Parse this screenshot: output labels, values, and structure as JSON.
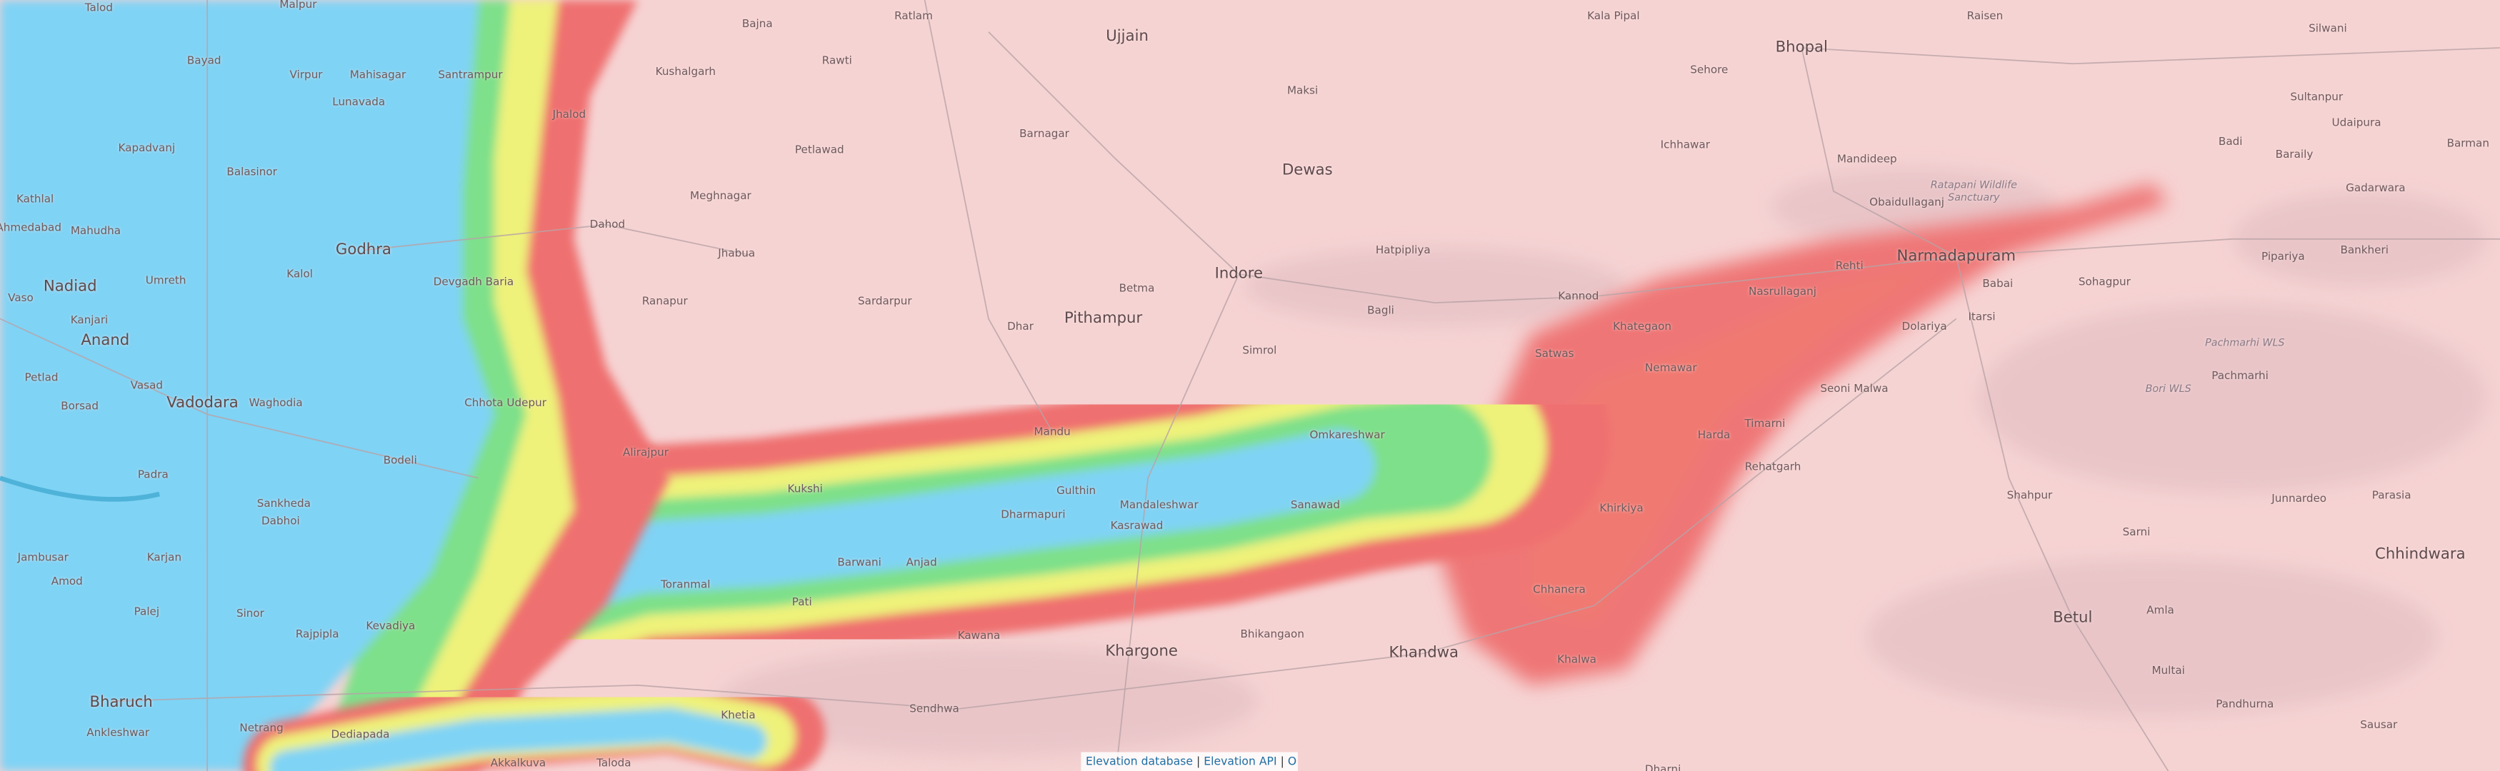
{
  "map": {
    "colors": {
      "background": "#f6d3d3",
      "low": "#7fd3f5",
      "green": "#7ee08a",
      "yellow": "#eef27a",
      "red": "#ef6f6f",
      "hills": "#e6c2c6"
    },
    "labels": [
      {
        "name": "Talod",
        "kind": "town"
      },
      {
        "name": "Malpur",
        "kind": "town"
      },
      {
        "name": "Ratlam",
        "kind": "town"
      },
      {
        "name": "Kala Pipal",
        "kind": "town"
      },
      {
        "name": "Raisen",
        "kind": "town"
      },
      {
        "name": "Silwani",
        "kind": "town"
      },
      {
        "name": "Bajna",
        "kind": "town"
      },
      {
        "name": "Bayad",
        "kind": "town"
      },
      {
        "name": "Virpur",
        "kind": "town"
      },
      {
        "name": "Mahisagar",
        "kind": "town"
      },
      {
        "name": "Santrampur",
        "kind": "town"
      },
      {
        "name": "Kushalgarh",
        "kind": "town"
      },
      {
        "name": "Rawti",
        "kind": "town"
      },
      {
        "name": "Ujjain",
        "kind": "city"
      },
      {
        "name": "Maksi",
        "kind": "town"
      },
      {
        "name": "Sehore",
        "kind": "town"
      },
      {
        "name": "Bhopal",
        "kind": "city"
      },
      {
        "name": "Sultanpur",
        "kind": "town"
      },
      {
        "name": "Lunavada",
        "kind": "town"
      },
      {
        "name": "Jhalod",
        "kind": "town"
      },
      {
        "name": "Petlawad",
        "kind": "town"
      },
      {
        "name": "Barnagar",
        "kind": "town"
      },
      {
        "name": "Dewas",
        "kind": "city"
      },
      {
        "name": "Ichhawar",
        "kind": "town"
      },
      {
        "name": "Mandideep",
        "kind": "town"
      },
      {
        "name": "Udaipura",
        "kind": "town"
      },
      {
        "name": "Kapadvanj",
        "kind": "town"
      },
      {
        "name": "Balasinor",
        "kind": "town"
      },
      {
        "name": "Meghnagar",
        "kind": "town"
      },
      {
        "name": "Obaidullaganj",
        "kind": "town"
      },
      {
        "name": "Ratapani Wildlife Sanctuary",
        "kind": "park"
      },
      {
        "name": "Badi",
        "kind": "town"
      },
      {
        "name": "Baraily",
        "kind": "town"
      },
      {
        "name": "Barman",
        "kind": "town"
      },
      {
        "name": "Gadarwara",
        "kind": "town"
      },
      {
        "name": "Kathlal",
        "kind": "town"
      },
      {
        "name": "Mahudha",
        "kind": "town"
      },
      {
        "name": "Godhra",
        "kind": "city"
      },
      {
        "name": "Dahod",
        "kind": "town"
      },
      {
        "name": "Jhabua",
        "kind": "town"
      },
      {
        "name": "Hatpipliya",
        "kind": "town"
      },
      {
        "name": "Rehti",
        "kind": "town"
      },
      {
        "name": "Narmadapuram",
        "kind": "city"
      },
      {
        "name": "Pipariya",
        "kind": "town"
      },
      {
        "name": "Bankheri",
        "kind": "town"
      },
      {
        "name": "Ahmedabad",
        "kind": "town"
      },
      {
        "name": "Nadiad",
        "kind": "city"
      },
      {
        "name": "Umreth",
        "kind": "town"
      },
      {
        "name": "Kalol",
        "kind": "town"
      },
      {
        "name": "Devgadh Baria",
        "kind": "town"
      },
      {
        "name": "Ranapur",
        "kind": "town"
      },
      {
        "name": "Sardarpur",
        "kind": "town"
      },
      {
        "name": "Betma",
        "kind": "town"
      },
      {
        "name": "Indore",
        "kind": "city"
      },
      {
        "name": "Pithampur",
        "kind": "city"
      },
      {
        "name": "Kannod",
        "kind": "town"
      },
      {
        "name": "Nasrullaganj",
        "kind": "town"
      },
      {
        "name": "Babai",
        "kind": "town"
      },
      {
        "name": "Sohagpur",
        "kind": "town"
      },
      {
        "name": "Vaso",
        "kind": "town"
      },
      {
        "name": "Anand",
        "kind": "city"
      },
      {
        "name": "Kanjari",
        "kind": "town"
      },
      {
        "name": "Dhar",
        "kind": "town"
      },
      {
        "name": "Simrol",
        "kind": "town"
      },
      {
        "name": "Bagli",
        "kind": "town"
      },
      {
        "name": "Satwas",
        "kind": "town"
      },
      {
        "name": "Khategaon",
        "kind": "town"
      },
      {
        "name": "Dolariya",
        "kind": "town"
      },
      {
        "name": "Itarsi",
        "kind": "town"
      },
      {
        "name": "Pachmarhi WLS",
        "kind": "park"
      },
      {
        "name": "Nemawar",
        "kind": "town"
      },
      {
        "name": "Seoni Malwa",
        "kind": "town"
      },
      {
        "name": "Petlad",
        "kind": "town"
      },
      {
        "name": "Vasad",
        "kind": "town"
      },
      {
        "name": "Pachmarhi",
        "kind": "town"
      },
      {
        "name": "Bori WLS",
        "kind": "park"
      },
      {
        "name": "Borsad",
        "kind": "town"
      },
      {
        "name": "Vadodara",
        "kind": "city"
      },
      {
        "name": "Waghodia",
        "kind": "town"
      },
      {
        "name": "Chhota Udepur",
        "kind": "town"
      },
      {
        "name": "Mandu",
        "kind": "town"
      },
      {
        "name": "Harda",
        "kind": "town"
      },
      {
        "name": "Timarni",
        "kind": "town"
      },
      {
        "name": "Alirajpur",
        "kind": "town"
      },
      {
        "name": "Omkareshwar",
        "kind": "town"
      },
      {
        "name": "Rehatgarh",
        "kind": "town"
      },
      {
        "name": "Padra",
        "kind": "town"
      },
      {
        "name": "Bodeli",
        "kind": "town"
      },
      {
        "name": "Kukshi",
        "kind": "town"
      },
      {
        "name": "Gulthin",
        "kind": "town"
      },
      {
        "name": "Sanawad",
        "kind": "town"
      },
      {
        "name": "Sankheda",
        "kind": "town"
      },
      {
        "name": "Dharmapuri",
        "kind": "town"
      },
      {
        "name": "Mandaleshwar",
        "kind": "town"
      },
      {
        "name": "Kasrawad",
        "kind": "town"
      },
      {
        "name": "Khirkiya",
        "kind": "town"
      },
      {
        "name": "Shahpur",
        "kind": "town"
      },
      {
        "name": "Junnardeo",
        "kind": "town"
      },
      {
        "name": "Parasia",
        "kind": "town"
      },
      {
        "name": "Dabhoi",
        "kind": "town"
      },
      {
        "name": "Chhindwara",
        "kind": "city"
      },
      {
        "name": "Sarni",
        "kind": "town"
      },
      {
        "name": "Jambusar",
        "kind": "town"
      },
      {
        "name": "Karjan",
        "kind": "town"
      },
      {
        "name": "Barwani",
        "kind": "town"
      },
      {
        "name": "Anjad",
        "kind": "town"
      },
      {
        "name": "Amod",
        "kind": "town"
      },
      {
        "name": "Chhanera",
        "kind": "town"
      },
      {
        "name": "Palej",
        "kind": "town"
      },
      {
        "name": "Sinor",
        "kind": "town"
      },
      {
        "name": "Kevadiya",
        "kind": "town"
      },
      {
        "name": "Rajpipla",
        "kind": "town"
      },
      {
        "name": "Pati",
        "kind": "town"
      },
      {
        "name": "Bhikangaon",
        "kind": "town"
      },
      {
        "name": "Kawana",
        "kind": "town"
      },
      {
        "name": "Khargone",
        "kind": "city"
      },
      {
        "name": "Khandwa",
        "kind": "city"
      },
      {
        "name": "Khalwa",
        "kind": "town"
      },
      {
        "name": "Betul",
        "kind": "city"
      },
      {
        "name": "Amla",
        "kind": "town"
      },
      {
        "name": "Multai",
        "kind": "town"
      },
      {
        "name": "Bharuch",
        "kind": "city"
      },
      {
        "name": "Toranmal",
        "kind": "town"
      },
      {
        "name": "Pandhurna",
        "kind": "town"
      },
      {
        "name": "Netrang",
        "kind": "town"
      },
      {
        "name": "Dediapada",
        "kind": "town"
      },
      {
        "name": "Khetia",
        "kind": "town"
      },
      {
        "name": "Sendhwa",
        "kind": "town"
      },
      {
        "name": "Sausar",
        "kind": "town"
      },
      {
        "name": "Ankleshwar",
        "kind": "town"
      },
      {
        "name": "Akkalkuva",
        "kind": "town"
      },
      {
        "name": "Taloda",
        "kind": "town"
      },
      {
        "name": "Dharni",
        "kind": "town"
      }
    ]
  },
  "attribution": {
    "link1": "Elevation database",
    "sep": "|",
    "link2": "Elevation API",
    "more": "O"
  }
}
